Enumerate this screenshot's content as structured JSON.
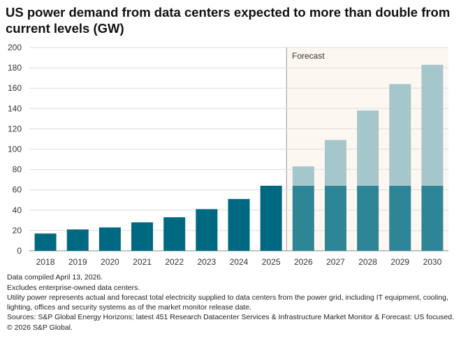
{
  "title": "US power demand from data centers expected to more than double from current levels (GW)",
  "notes": [
    "Data compiled April 13, 2026.",
    "Excludes enterprise-owned data centers.",
    "Utility power represents actual and forecast total electricity supplied to data centers from the power grid, including IT equipment, cooling, lighting, offices and security systems as of the market monitor release date.",
    "Sources: S&P Global Energy Horizons; latest 451 Research Datacenter Services & Infrastructure Market Monitor & Forecast: US focused.",
    "© 2026 S&P Global."
  ],
  "colors": {
    "actual": "#006982",
    "forecast_base": "#2e8596",
    "forecast_increment": "#a5c6cb",
    "forecast_band": "#fdf7f1",
    "grid": "#dddddd"
  },
  "chart_data": {
    "type": "bar",
    "stacked": true,
    "categories": [
      "2018",
      "2019",
      "2020",
      "2021",
      "2022",
      "2023",
      "2024",
      "2025",
      "2026",
      "2027",
      "2028",
      "2029",
      "2030"
    ],
    "series": [
      {
        "values": [
          17,
          21,
          23,
          28,
          33,
          41,
          51,
          64,
          64,
          64,
          64,
          64,
          64
        ]
      },
      {
        "values": [
          0,
          0,
          0,
          0,
          0,
          0,
          0,
          0,
          19,
          45,
          74,
          100,
          119
        ]
      }
    ],
    "forecast_start": "2026",
    "forecast_label": "Forecast",
    "ylim": [
      0,
      200
    ],
    "yticks": [
      0,
      20,
      40,
      60,
      80,
      100,
      120,
      140,
      160,
      180,
      200
    ],
    "grid": true,
    "xlabel": "",
    "ylabel": ""
  }
}
